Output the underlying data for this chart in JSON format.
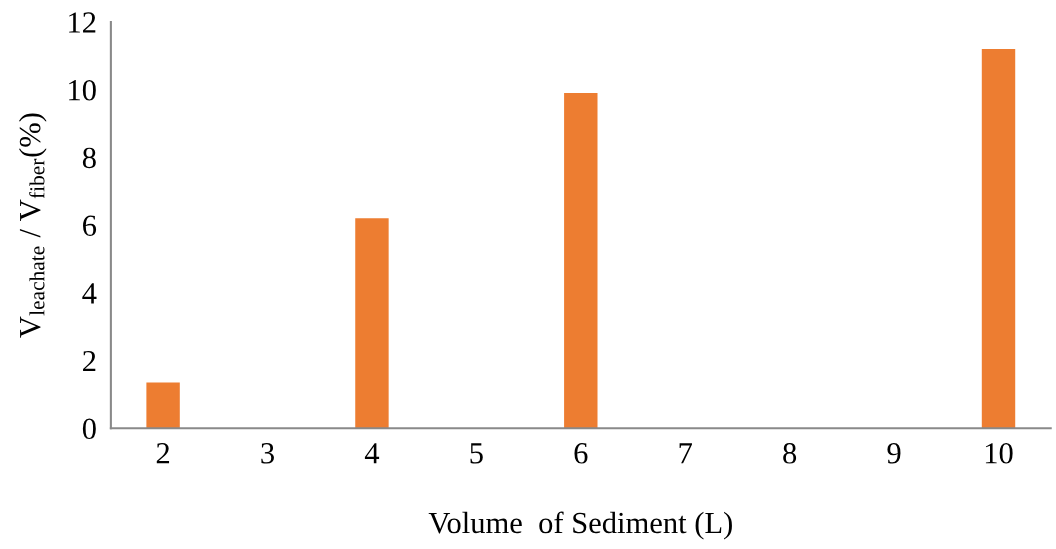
{
  "chart_data": {
    "type": "bar",
    "xlabel": "Volume  of Sediment (L)",
    "ylabel": "V$_{leachate}$ / V$_{fiber}$(%)",
    "categories": [
      "2",
      "3",
      "4",
      "5",
      "6",
      "7",
      "8",
      "9",
      "10"
    ],
    "values": [
      1.35,
      null,
      6.2,
      null,
      9.9,
      null,
      null,
      null,
      11.2
    ],
    "color": "#ed7d31",
    "ylim": [
      0,
      12
    ],
    "yticks": [
      0,
      2,
      4,
      6,
      8,
      10,
      12
    ],
    "grid": false,
    "legend": false
  }
}
